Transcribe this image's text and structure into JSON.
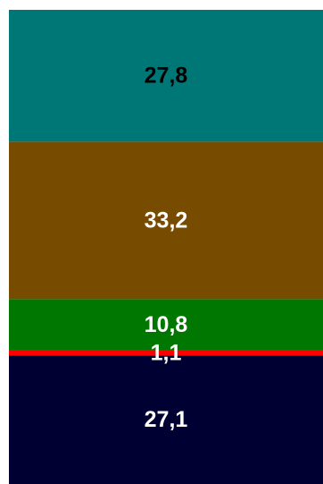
{
  "chart_data": {
    "type": "bar",
    "stacked": true,
    "orientation": "vertical",
    "categories": [
      ""
    ],
    "series": [
      {
        "values": [
          27.1
        ],
        "label": "27,1",
        "color": "#000033",
        "label_color": "#ffffff"
      },
      {
        "values": [
          1.1
        ],
        "label": "1,1",
        "color": "#ff0000",
        "label_color": "#ffffff"
      },
      {
        "values": [
          10.8
        ],
        "label": "10,8",
        "color": "#007700",
        "label_color": "#ffffff"
      },
      {
        "values": [
          33.2
        ],
        "label": "33,2",
        "color": "#774c00",
        "label_color": "#ffffff"
      },
      {
        "values": [
          27.8
        ],
        "label": "27,8",
        "color": "#007777",
        "label_color": "#000000"
      }
    ],
    "ylim": [
      0,
      100
    ],
    "grid": false,
    "legend": "none"
  }
}
